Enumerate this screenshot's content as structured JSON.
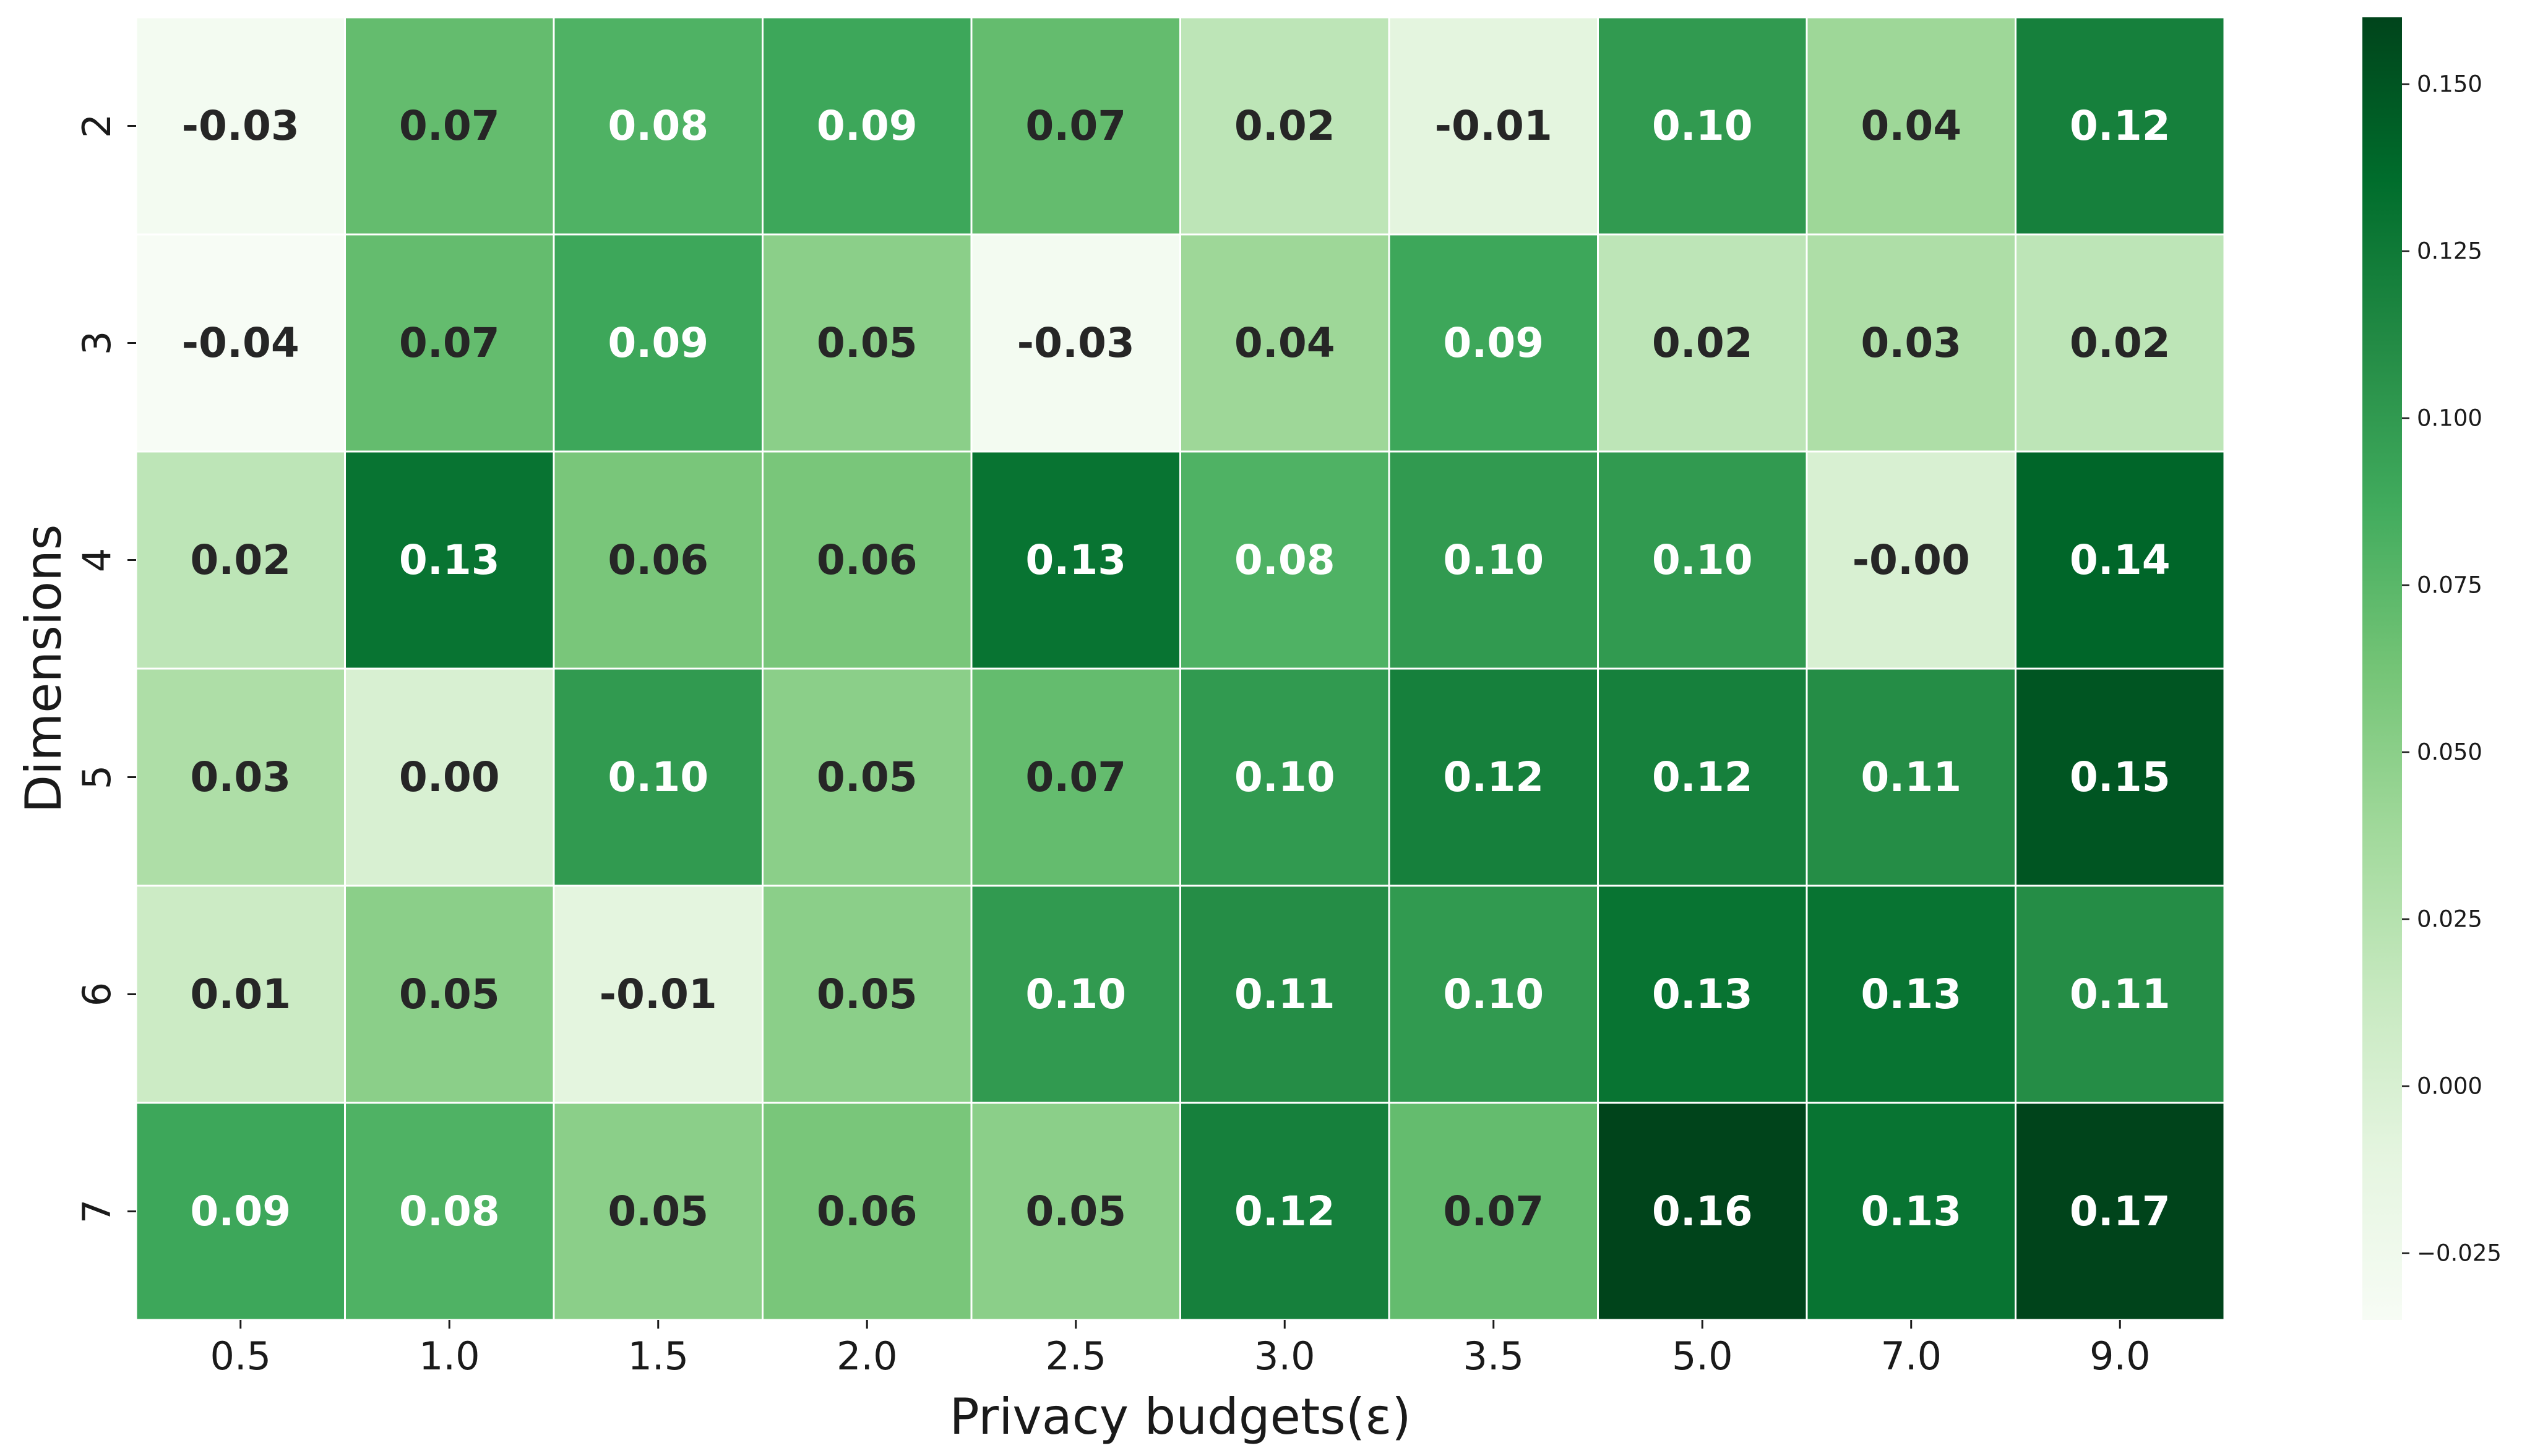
{
  "chart_data": {
    "type": "heatmap",
    "xlabel": "Privacy budgets(ε)",
    "ylabel": "Dimensions",
    "x_categories": [
      "0.5",
      "1.0",
      "1.5",
      "2.0",
      "2.5",
      "3.0",
      "3.5",
      "5.0",
      "7.0",
      "9.0"
    ],
    "y_categories": [
      "2",
      "3",
      "4",
      "5",
      "6",
      "7"
    ],
    "values": [
      [
        -0.03,
        0.07,
        0.08,
        0.09,
        0.07,
        0.02,
        -0.01,
        0.1,
        0.04,
        0.12
      ],
      [
        -0.04,
        0.07,
        0.09,
        0.05,
        -0.03,
        0.04,
        0.09,
        0.02,
        0.03,
        0.02
      ],
      [
        0.02,
        0.13,
        0.06,
        0.06,
        0.13,
        0.08,
        0.1,
        0.1,
        -0.0,
        0.14
      ],
      [
        0.03,
        0.0,
        0.1,
        0.05,
        0.07,
        0.1,
        0.12,
        0.12,
        0.11,
        0.15
      ],
      [
        0.01,
        0.05,
        -0.01,
        0.05,
        0.1,
        0.11,
        0.1,
        0.13,
        0.13,
        0.11
      ],
      [
        0.09,
        0.08,
        0.05,
        0.06,
        0.05,
        0.12,
        0.07,
        0.16,
        0.13,
        0.17
      ]
    ],
    "value_labels": [
      [
        "-0.03",
        "0.07",
        "0.08",
        "0.09",
        "0.07",
        "0.02",
        "-0.01",
        "0.10",
        "0.04",
        "0.12"
      ],
      [
        "-0.04",
        "0.07",
        "0.09",
        "0.05",
        "-0.03",
        "0.04",
        "0.09",
        "0.02",
        "0.03",
        "0.02"
      ],
      [
        "0.02",
        "0.13",
        "0.06",
        "0.06",
        "0.13",
        "0.08",
        "0.10",
        "0.10",
        "-0.00",
        "0.14"
      ],
      [
        "0.03",
        "0.00",
        "0.10",
        "0.05",
        "0.07",
        "0.10",
        "0.12",
        "0.12",
        "0.11",
        "0.15"
      ],
      [
        "0.01",
        "0.05",
        "-0.01",
        "0.05",
        "0.10",
        "0.11",
        "0.10",
        "0.13",
        "0.13",
        "0.11"
      ],
      [
        "0.09",
        "0.08",
        "0.05",
        "0.06",
        "0.05",
        "0.12",
        "0.07",
        "0.16",
        "0.13",
        "0.17"
      ]
    ],
    "colormap": "Greens",
    "vmin": -0.035,
    "vmax": 0.16,
    "colorbar_ticks": [
      -0.025,
      0.0,
      0.025,
      0.05,
      0.075,
      0.1,
      0.125,
      0.15
    ],
    "colorbar_tick_labels": [
      "−0.025",
      "0.000",
      "0.025",
      "0.050",
      "0.075",
      "0.100",
      "0.125",
      "0.150"
    ],
    "grid": true,
    "grid_color": "#ffffff"
  }
}
